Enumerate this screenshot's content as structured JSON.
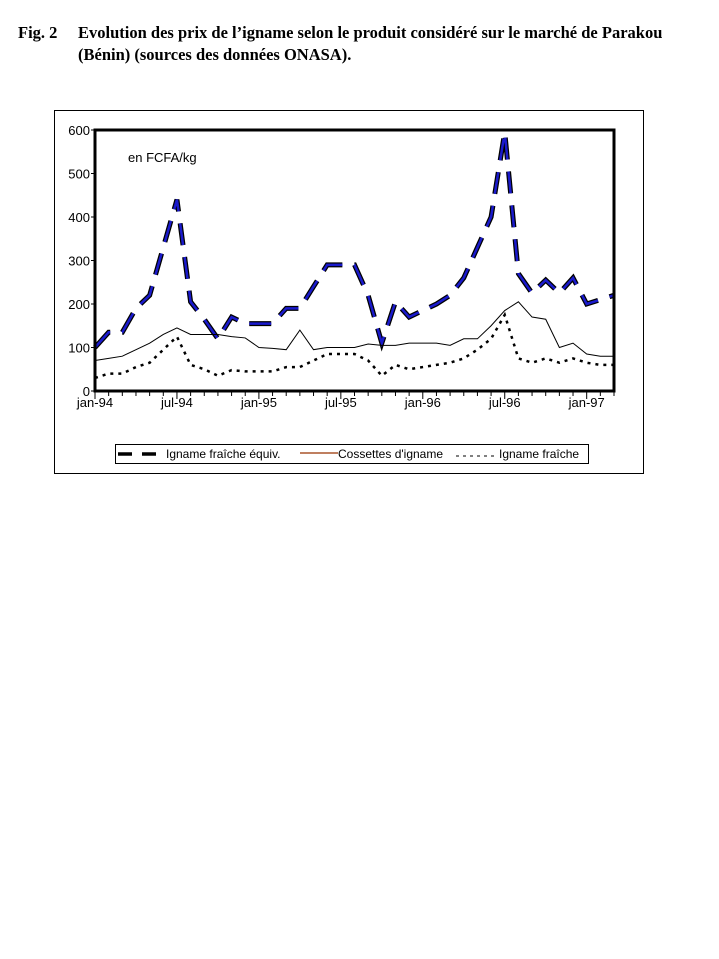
{
  "caption": {
    "number": "Fig. 2",
    "text": "Evolution des prix de l’igname selon le produit considéré sur le marché de Parakou (Bénin) (sources des données ONASA)."
  },
  "chart_data": {
    "type": "line",
    "title": "",
    "unit_label": "en FCFA/kg",
    "xlabel": "",
    "ylabel": "",
    "ylim": [
      0,
      600
    ],
    "yticks": [
      0,
      100,
      200,
      300,
      400,
      500,
      600
    ],
    "xtick_labels": [
      "jan-94",
      "jul-94",
      "jan-95",
      "jul-95",
      "jan-96",
      "jul-96",
      "jan-97"
    ],
    "months": 39,
    "legend_position": "bottom",
    "series": [
      {
        "name": "Igname fraîche équiv.",
        "style": "dashed",
        "color": "#1a1acc",
        "values": [
          100,
          135,
          135,
          190,
          220,
          330,
          440,
          205,
          165,
          120,
          170,
          155,
          155,
          155,
          190,
          190,
          240,
          290,
          290,
          290,
          220,
          110,
          205,
          170,
          185,
          200,
          220,
          260,
          330,
          400,
          595,
          270,
          225,
          255,
          225,
          260,
          200,
          210,
          220
        ]
      },
      {
        "name": "Cossettes d'igname",
        "style": "solid",
        "color": "#000000",
        "legend_color": "#993300",
        "values": [
          70,
          75,
          80,
          95,
          110,
          130,
          145,
          130,
          130,
          130,
          125,
          122,
          100,
          98,
          95,
          140,
          95,
          100,
          100,
          100,
          108,
          105,
          105,
          110,
          110,
          110,
          105,
          120,
          120,
          150,
          185,
          205,
          170,
          165,
          100,
          110,
          85,
          80,
          80
        ]
      },
      {
        "name": "Igname fraîche",
        "style": "dotted",
        "color": "#000000",
        "values": [
          30,
          40,
          40,
          55,
          65,
          95,
          125,
          60,
          50,
          35,
          48,
          45,
          45,
          45,
          55,
          55,
          70,
          85,
          85,
          85,
          70,
          35,
          60,
          50,
          55,
          60,
          65,
          75,
          95,
          120,
          175,
          75,
          65,
          75,
          65,
          75,
          65,
          60,
          60
        ]
      }
    ]
  }
}
